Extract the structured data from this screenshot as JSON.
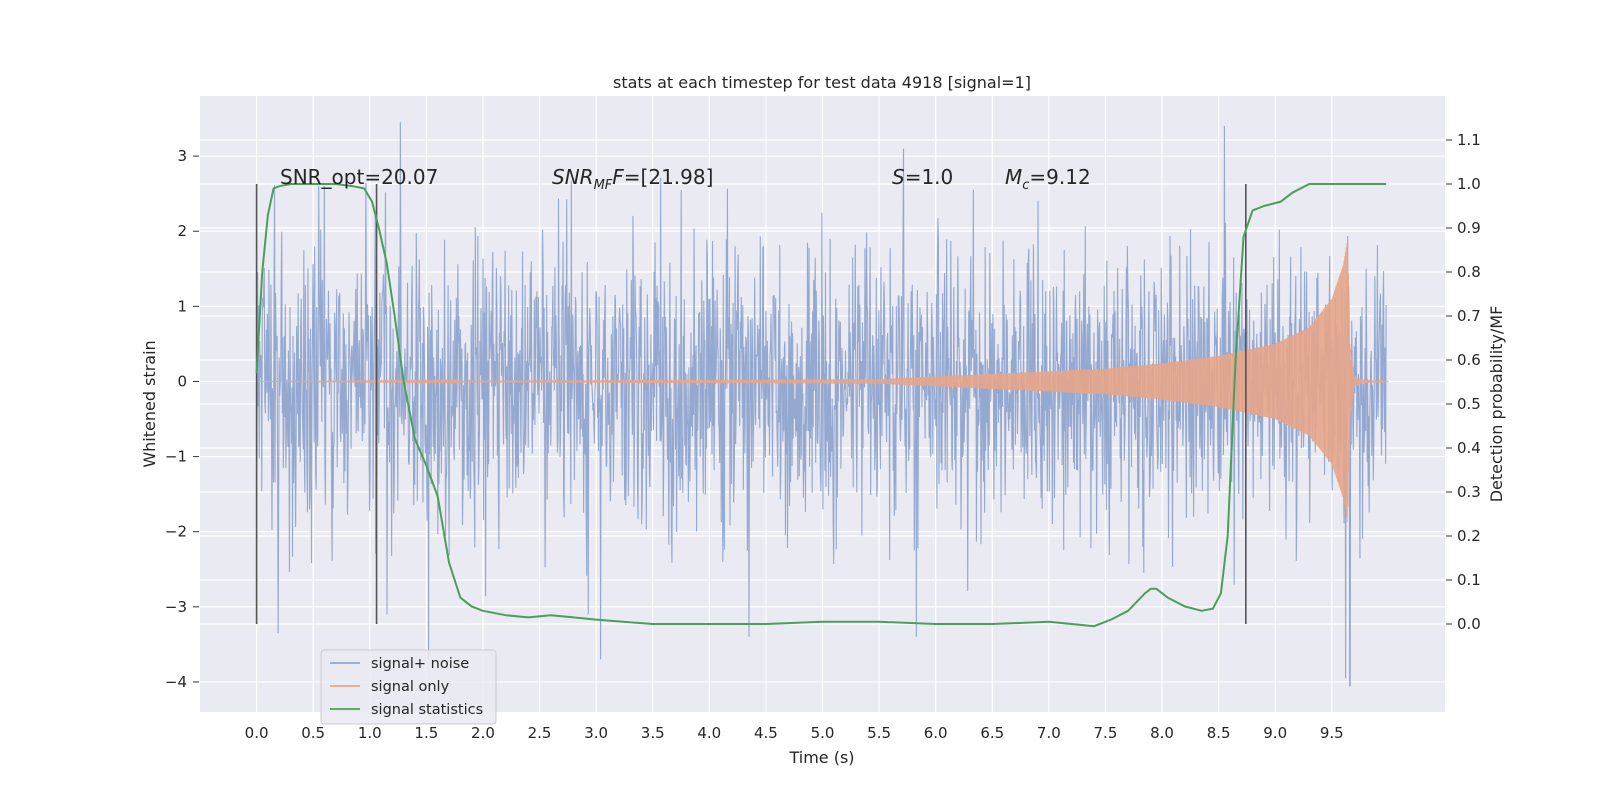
{
  "chart_data": {
    "type": "line",
    "title": "stats at each timestep for test data 4918 [signal=1]",
    "xlabel": "Time (s)",
    "ylabel": "Whitened strain",
    "y2label": "Detection probability/MF",
    "xlim": [
      -0.5,
      10.5
    ],
    "ylim": [
      -4.4,
      3.8
    ],
    "y2lim": [
      -0.2,
      1.2
    ],
    "x_ticks": [
      "0.0",
      "0.5",
      "1.0",
      "1.5",
      "2.0",
      "2.5",
      "3.0",
      "3.5",
      "4.0",
      "4.5",
      "5.0",
      "5.5",
      "6.0",
      "6.5",
      "7.0",
      "7.5",
      "8.0",
      "8.5",
      "9.0",
      "9.5"
    ],
    "y_ticks": [
      "3",
      "2",
      "1",
      "0",
      "−1",
      "−2",
      "−3",
      "−4"
    ],
    "y2_ticks": [
      "1.1",
      "1.0",
      "0.9",
      "0.8",
      "0.7",
      "0.6",
      "0.5",
      "0.4",
      "0.3",
      "0.2",
      "0.1",
      "0.0"
    ],
    "grid": true,
    "legend_position": "lower-left",
    "annotations": {
      "snr_opt": "SNR_opt=20.07",
      "snr_mf_main": "SNR",
      "snr_mf_sub": "MF",
      "snr_mf_rest": "=[21.98]",
      "s_main": "S",
      "s_rest": "=1.0",
      "mc_main": "M",
      "mc_sub": "c",
      "mc_rest": "=9.12"
    },
    "vertical_lines_x": [
      0.0,
      1.06,
      8.74
    ],
    "series": [
      {
        "name": "signal+ noise",
        "color": "#8fa4cd",
        "x_range": [
          0.0,
          9.98
        ],
        "typical_envelope": [
          -1.5,
          1.5
        ],
        "peaks": [
          {
            "x": 1.27,
            "y": 3.45
          },
          {
            "x": 1.52,
            "y": -3.7
          },
          {
            "x": 3.04,
            "y": -3.7
          },
          {
            "x": 8.55,
            "y": 3.4
          },
          {
            "x": 9.66,
            "y": -4.05
          },
          {
            "x": 9.62,
            "y": -3.95
          },
          {
            "x": 0.19,
            "y": -3.35
          },
          {
            "x": 5.83,
            "y": -3.4
          },
          {
            "x": 4.35,
            "y": -3.4
          }
        ]
      },
      {
        "name": "signal only",
        "color": "#e5a58a",
        "x": [
          0.0,
          5.5,
          6.5,
          7.5,
          8.0,
          8.5,
          9.0,
          9.3,
          9.5,
          9.6,
          9.64,
          9.66,
          9.7,
          9.8,
          10.0
        ],
        "amplitude": [
          0.0,
          0.03,
          0.1,
          0.17,
          0.24,
          0.34,
          0.5,
          0.72,
          1.1,
          1.55,
          1.9,
          0.5,
          0.05,
          0.02,
          0.0
        ]
      },
      {
        "name": "signal statistics",
        "color": "#4c9e5a",
        "x": [
          0.0,
          0.05,
          0.1,
          0.15,
          0.2,
          0.3,
          0.5,
          0.7,
          0.85,
          0.95,
          1.02,
          1.08,
          1.15,
          1.22,
          1.3,
          1.4,
          1.5,
          1.6,
          1.7,
          1.8,
          1.9,
          2.0,
          2.2,
          2.4,
          2.6,
          2.8,
          3.0,
          3.5,
          4.0,
          4.5,
          5.0,
          5.5,
          6.0,
          6.5,
          7.0,
          7.4,
          7.55,
          7.7,
          7.85,
          7.9,
          7.95,
          8.05,
          8.2,
          8.35,
          8.45,
          8.52,
          8.58,
          8.65,
          8.72,
          8.8,
          8.9,
          9.05,
          9.15,
          9.3,
          9.5,
          9.7,
          9.9,
          9.98
        ],
        "y": [
          0.57,
          0.8,
          0.93,
          0.99,
          0.995,
          1.0,
          1.0,
          1.0,
          0.995,
          0.99,
          0.96,
          0.9,
          0.82,
          0.7,
          0.55,
          0.42,
          0.36,
          0.29,
          0.14,
          0.06,
          0.04,
          0.03,
          0.02,
          0.015,
          0.02,
          0.015,
          0.01,
          0.0,
          0.0,
          0.0,
          0.005,
          0.005,
          0.0,
          0.0,
          0.005,
          -0.005,
          0.01,
          0.03,
          0.07,
          0.08,
          0.08,
          0.06,
          0.04,
          0.03,
          0.035,
          0.07,
          0.2,
          0.6,
          0.88,
          0.94,
          0.95,
          0.96,
          0.98,
          1.0,
          1.0,
          1.0,
          1.0,
          1.0
        ]
      }
    ]
  }
}
